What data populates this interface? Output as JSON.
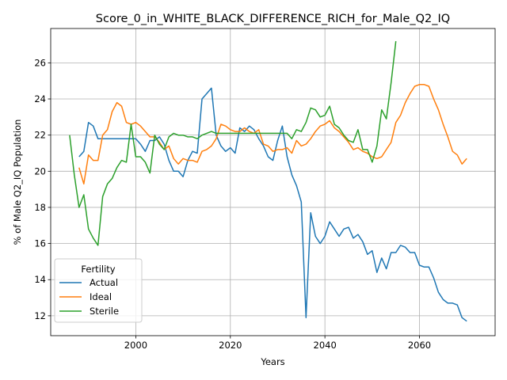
{
  "chart_data": {
    "type": "line",
    "title": "Score_0_in_WHITE_BLACK_DIFFERENCE_RICH_for_Male_Q2_IQ",
    "xlabel": "Years",
    "ylabel": "% of Male Q2_IQ Population",
    "xlim": [
      1982,
      2076
    ],
    "ylim": [
      10.9,
      27.9
    ],
    "xticks": [
      2000,
      2020,
      2040,
      2060
    ],
    "yticks": [
      12,
      14,
      16,
      18,
      20,
      22,
      24,
      26
    ],
    "grid": true,
    "legend": {
      "title": "Fertility",
      "placement": "lower-left"
    },
    "series": [
      {
        "name": "Actual",
        "color": "#1f77b4",
        "x": [
          1988,
          1989,
          1990,
          1991,
          1992,
          1993,
          1994,
          1995,
          1996,
          1997,
          1998,
          1999,
          2000,
          2001,
          2002,
          2003,
          2004,
          2005,
          2006,
          2007,
          2008,
          2009,
          2010,
          2011,
          2012,
          2013,
          2014,
          2015,
          2016,
          2017,
          2018,
          2019,
          2020,
          2021,
          2022,
          2023,
          2024,
          2025,
          2026,
          2027,
          2028,
          2029,
          2030,
          2031,
          2032,
          2033,
          2034,
          2035,
          2036,
          2037,
          2038,
          2039,
          2040,
          2041,
          2042,
          2043,
          2044,
          2045,
          2046,
          2047,
          2048,
          2049,
          2050,
          2051,
          2052,
          2053,
          2054,
          2055,
          2056,
          2057,
          2058,
          2059,
          2060,
          2061,
          2062,
          2063,
          2064,
          2065,
          2066,
          2067,
          2068,
          2069,
          2070
        ],
        "values": [
          20.8,
          21.1,
          22.7,
          22.5,
          21.8,
          21.8,
          21.8,
          21.8,
          21.8,
          21.8,
          21.8,
          21.8,
          21.8,
          21.5,
          21.1,
          21.7,
          21.7,
          21.9,
          21.5,
          20.6,
          20.0,
          20.0,
          19.7,
          20.6,
          21.1,
          21.0,
          24.0,
          24.3,
          24.6,
          22.0,
          21.4,
          21.1,
          21.3,
          21.0,
          22.4,
          22.2,
          22.5,
          22.3,
          21.8,
          21.4,
          20.8,
          20.6,
          21.7,
          22.5,
          20.8,
          19.8,
          19.2,
          18.3,
          11.9,
          17.7,
          16.4,
          16.0,
          16.4,
          17.2,
          16.8,
          16.4,
          16.8,
          16.9,
          16.3,
          16.5,
          16.1,
          15.4,
          15.6,
          14.4,
          15.2,
          14.6,
          15.5,
          15.5,
          15.9,
          15.8,
          15.5,
          15.5,
          14.8,
          14.7,
          14.7,
          14.1,
          13.3,
          12.9,
          12.7,
          12.7,
          12.6,
          11.9,
          11.7
        ]
      },
      {
        "name": "Ideal",
        "color": "#ff7f0e",
        "x": [
          1988,
          1989,
          1990,
          1991,
          1992,
          1993,
          1994,
          1995,
          1996,
          1997,
          1998,
          1999,
          2000,
          2001,
          2002,
          2003,
          2004,
          2005,
          2006,
          2007,
          2008,
          2009,
          2010,
          2011,
          2012,
          2013,
          2014,
          2015,
          2016,
          2017,
          2018,
          2019,
          2020,
          2021,
          2022,
          2023,
          2024,
          2025,
          2026,
          2027,
          2028,
          2029,
          2030,
          2031,
          2032,
          2033,
          2034,
          2035,
          2036,
          2037,
          2038,
          2039,
          2040,
          2041,
          2042,
          2043,
          2044,
          2045,
          2046,
          2047,
          2048,
          2049,
          2050,
          2051,
          2052,
          2053,
          2054,
          2055,
          2056,
          2057,
          2058,
          2059,
          2060,
          2061,
          2062,
          2063,
          2064,
          2065,
          2066,
          2067,
          2068,
          2069,
          2070
        ],
        "values": [
          20.2,
          19.3,
          20.9,
          20.6,
          20.6,
          22.0,
          22.3,
          23.3,
          23.8,
          23.6,
          22.7,
          22.6,
          22.7,
          22.5,
          22.2,
          21.9,
          21.9,
          21.6,
          21.2,
          21.4,
          20.7,
          20.4,
          20.7,
          20.6,
          20.6,
          20.5,
          21.1,
          21.2,
          21.4,
          21.8,
          22.6,
          22.5,
          22.3,
          22.2,
          22.2,
          22.4,
          22.2,
          22.1,
          22.3,
          21.5,
          21.4,
          21.1,
          21.2,
          21.2,
          21.3,
          21.0,
          21.7,
          21.4,
          21.5,
          21.8,
          22.2,
          22.5,
          22.6,
          22.8,
          22.4,
          22.2,
          21.9,
          21.6,
          21.2,
          21.3,
          21.1,
          21.0,
          20.8,
          20.7,
          20.8,
          21.2,
          21.6,
          22.7,
          23.1,
          23.8,
          24.3,
          24.7,
          24.8,
          24.8,
          24.7,
          24.0,
          23.4,
          22.6,
          21.9,
          21.1,
          20.9,
          20.4,
          20.7
        ]
      },
      {
        "name": "Sterile",
        "color": "#2ca02c",
        "x": [
          1986,
          1987,
          1988,
          1989,
          1990,
          1991,
          1992,
          1993,
          1994,
          1995,
          1996,
          1997,
          1998,
          1999,
          2000,
          2001,
          2002,
          2003,
          2004,
          2005,
          2006,
          2007,
          2008,
          2009,
          2010,
          2011,
          2012,
          2013,
          2014,
          2015,
          2016,
          2017,
          2018,
          2019,
          2020,
          2021,
          2022,
          2023,
          2024,
          2025,
          2026,
          2027,
          2028,
          2029,
          2030,
          2031,
          2032,
          2033,
          2034,
          2035,
          2036,
          2037,
          2038,
          2039,
          2040,
          2041,
          2042,
          2043,
          2044,
          2045,
          2046,
          2047,
          2048,
          2049,
          2050,
          2051,
          2052,
          2053,
          2054,
          2055
        ],
        "values": [
          22.0,
          19.8,
          18.0,
          18.7,
          16.8,
          16.3,
          15.9,
          18.6,
          19.3,
          19.6,
          20.2,
          20.6,
          20.5,
          22.6,
          20.8,
          20.8,
          20.5,
          19.9,
          22.0,
          21.5,
          21.2,
          21.9,
          22.1,
          22.0,
          22.0,
          21.9,
          21.9,
          21.8,
          22.0,
          22.1,
          22.2,
          22.1,
          22.1,
          22.1,
          22.1,
          22.1,
          22.1,
          22.1,
          22.1,
          22.1,
          22.1,
          22.1,
          22.1,
          22.1,
          22.1,
          22.1,
          22.1,
          21.8,
          22.3,
          22.2,
          22.7,
          23.5,
          23.4,
          23.0,
          23.1,
          23.6,
          22.6,
          22.4,
          22.0,
          21.7,
          21.6,
          22.3,
          21.2,
          21.2,
          20.5,
          21.4,
          23.4,
          22.9,
          24.9,
          27.2
        ]
      }
    ]
  }
}
